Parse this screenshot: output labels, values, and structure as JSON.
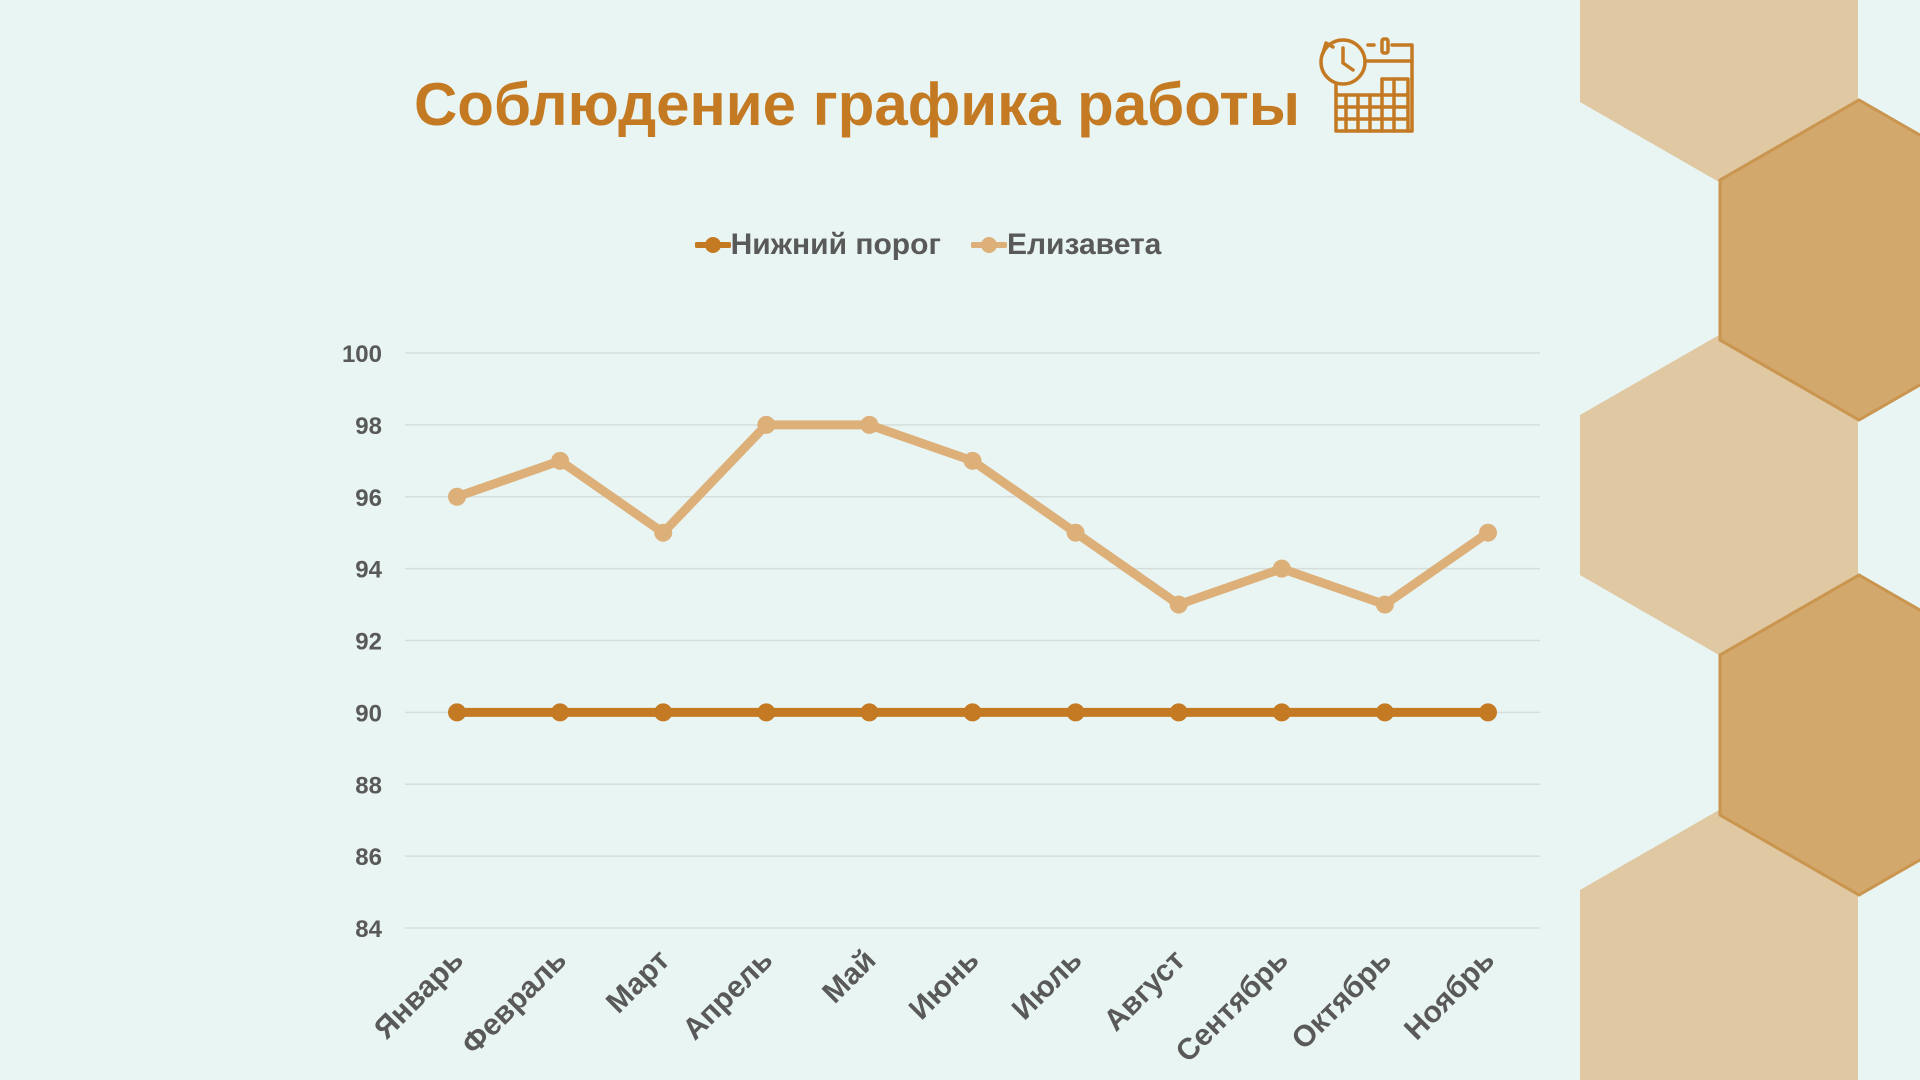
{
  "title": "Соблюдение графика работы",
  "title_icon": "calendar-clock-icon",
  "colors": {
    "background": "#E9F5F3",
    "title": "#C47A22",
    "series_threshold": "#C47A22",
    "series_person": "#DDB07A",
    "hex_light": "#DFC8A2",
    "hex_dark": "#D3A86C",
    "grid": "#D5DEDB",
    "text": "#595959"
  },
  "chart_data": {
    "type": "line",
    "title": "Соблюдение графика работы",
    "categories": [
      "Январь",
      "Февраль",
      "Март",
      "Апрель",
      "Май",
      "Июнь",
      "Июль",
      "Август",
      "Сентябрь",
      "Октябрь",
      "Ноябрь"
    ],
    "series": [
      {
        "name": "Нижний порог",
        "color": "#C47A22",
        "values": [
          90,
          90,
          90,
          90,
          90,
          90,
          90,
          90,
          90,
          90,
          90
        ]
      },
      {
        "name": "Елизавета",
        "color": "#DDB07A",
        "values": [
          96,
          97,
          95,
          98,
          98,
          97,
          95,
          93,
          94,
          93,
          95
        ]
      }
    ],
    "ylim": [
      84,
      100
    ],
    "yticks": [
      "84",
      "86",
      "88",
      "90",
      "92",
      "94",
      "96",
      "98",
      "100"
    ],
    "grid": true,
    "legend": "top-center"
  }
}
